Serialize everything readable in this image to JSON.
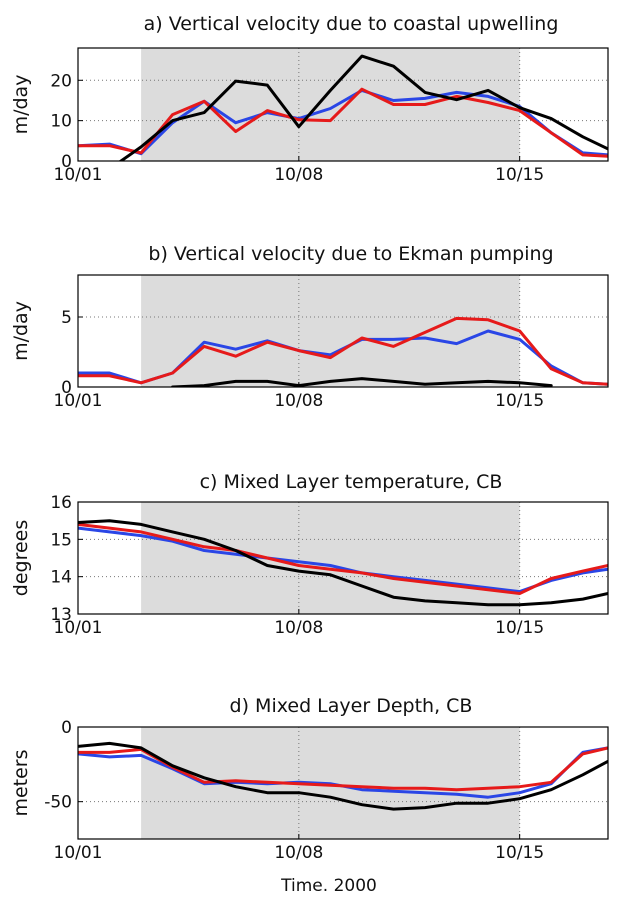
{
  "figure": {
    "xlabel": "Time. 2000"
  },
  "chart_data": [
    {
      "type": "line",
      "title": "a) Vertical velocity due to coastal upwelling",
      "ylabel": "m/day",
      "xlim": [
        1,
        17.8
      ],
      "ylim": [
        0,
        28
      ],
      "yticks": [
        0,
        10,
        20
      ],
      "xticks": [
        1,
        8,
        15
      ],
      "xticklabels": [
        "10/01",
        "10/08",
        "10/15"
      ],
      "shade": [
        3,
        15
      ],
      "grid": "dotted",
      "x": [
        1,
        2,
        3,
        4,
        5,
        6,
        7,
        8,
        9,
        10,
        11,
        12,
        13,
        14,
        15,
        16,
        17,
        17.8
      ],
      "series": [
        {
          "color": "#2a46e6",
          "values": [
            3.8,
            4.2,
            1.8,
            9.5,
            14.8,
            9.5,
            12.0,
            10.5,
            13.0,
            17.5,
            15.0,
            15.5,
            17.0,
            16.0,
            13.5,
            7.0,
            2.0,
            1.5
          ]
        },
        {
          "color": "#e61a1a",
          "values": [
            3.8,
            3.8,
            2.0,
            11.5,
            14.8,
            7.3,
            12.5,
            10.2,
            10.0,
            17.8,
            14.0,
            14.0,
            16.0,
            14.5,
            12.5,
            7.0,
            1.5,
            1.2
          ]
        },
        {
          "color": "#000000",
          "values": [
            -5.0,
            -2.0,
            3.5,
            10.0,
            12.0,
            19.8,
            18.8,
            8.5,
            17.5,
            26.0,
            23.5,
            17.0,
            15.2,
            17.5,
            13.2,
            10.5,
            6.0,
            3.0
          ]
        }
      ]
    },
    {
      "type": "line",
      "title": "b) Vertical velocity due to Ekman pumping",
      "ylabel": "m/day",
      "xlim": [
        1,
        17.8
      ],
      "ylim": [
        0,
        8
      ],
      "yticks": [
        0,
        5
      ],
      "xticks": [
        1,
        8,
        15
      ],
      "xticklabels": [
        "10/01",
        "10/08",
        "10/15"
      ],
      "shade": [
        3,
        15
      ],
      "grid": "dotted",
      "x": [
        1,
        2,
        3,
        4,
        5,
        6,
        7,
        8,
        9,
        10,
        11,
        12,
        13,
        14,
        15,
        16,
        17,
        17.8
      ],
      "series": [
        {
          "color": "#2a46e6",
          "values": [
            1.0,
            1.0,
            0.3,
            1.0,
            3.2,
            2.7,
            3.3,
            2.6,
            2.3,
            3.4,
            3.4,
            3.5,
            3.1,
            4.0,
            3.4,
            1.5,
            0.3,
            0.2
          ]
        },
        {
          "color": "#e61a1a",
          "values": [
            0.8,
            0.8,
            0.3,
            1.0,
            2.9,
            2.2,
            3.2,
            2.6,
            2.1,
            3.5,
            2.9,
            3.9,
            4.9,
            4.8,
            4.0,
            1.3,
            0.3,
            0.2
          ]
        },
        {
          "color": "#000000",
          "values": [
            null,
            null,
            null,
            0.0,
            0.1,
            0.4,
            0.4,
            0.1,
            0.4,
            0.6,
            0.4,
            0.2,
            0.3,
            0.4,
            0.3,
            0.1,
            null,
            null
          ]
        }
      ]
    },
    {
      "type": "line",
      "title": "c) Mixed Layer temperature, CB",
      "ylabel": "degrees",
      "xlim": [
        1,
        17.8
      ],
      "ylim": [
        13,
        16
      ],
      "yticks": [
        13,
        14,
        15,
        16
      ],
      "xticks": [
        1,
        8,
        15
      ],
      "xticklabels": [
        "10/01",
        "10/08",
        "10/15"
      ],
      "shade": [
        3,
        15
      ],
      "grid": "dotted",
      "x": [
        1,
        2,
        3,
        4,
        5,
        6,
        7,
        8,
        9,
        10,
        11,
        12,
        13,
        14,
        15,
        16,
        17,
        17.8
      ],
      "series": [
        {
          "color": "#2a46e6",
          "values": [
            15.3,
            15.2,
            15.1,
            14.95,
            14.7,
            14.6,
            14.5,
            14.4,
            14.3,
            14.1,
            14.0,
            13.9,
            13.8,
            13.7,
            13.6,
            13.9,
            14.1,
            14.2
          ]
        },
        {
          "color": "#e61a1a",
          "values": [
            15.4,
            15.3,
            15.2,
            15.0,
            14.8,
            14.7,
            14.5,
            14.3,
            14.2,
            14.1,
            13.95,
            13.85,
            13.75,
            13.65,
            13.55,
            13.95,
            14.15,
            14.3
          ]
        },
        {
          "color": "#000000",
          "values": [
            15.45,
            15.5,
            15.4,
            15.2,
            15.0,
            14.7,
            14.3,
            14.15,
            14.05,
            13.75,
            13.45,
            13.35,
            13.3,
            13.25,
            13.25,
            13.3,
            13.4,
            13.55
          ]
        }
      ]
    },
    {
      "type": "line",
      "title": "d) Mixed Layer Depth, CB",
      "ylabel": "meters",
      "xlim": [
        1,
        17.8
      ],
      "ylim": [
        -75,
        0
      ],
      "yticks": [
        -50,
        0
      ],
      "xticks": [
        1,
        8,
        15
      ],
      "xticklabels": [
        "10/01",
        "10/08",
        "10/15"
      ],
      "shade": [
        3,
        15
      ],
      "grid": "dotted",
      "x": [
        1,
        2,
        3,
        4,
        5,
        6,
        7,
        8,
        9,
        10,
        11,
        12,
        13,
        14,
        15,
        16,
        17,
        17.8
      ],
      "series": [
        {
          "color": "#2a46e6",
          "values": [
            -18,
            -20,
            -19,
            -28,
            -38,
            -37,
            -38,
            -37,
            -38,
            -42,
            -43,
            -44,
            -45,
            -47,
            -44,
            -38,
            -17,
            -14
          ]
        },
        {
          "color": "#e61a1a",
          "values": [
            -17,
            -17,
            -15,
            -27,
            -37,
            -36,
            -37,
            -38,
            -39,
            -40,
            -41,
            -41,
            -42,
            -41,
            -40,
            -37,
            -18,
            -14
          ]
        },
        {
          "color": "#000000",
          "values": [
            -13,
            -11,
            -14,
            -26,
            -34,
            -40,
            -44,
            -44,
            -47,
            -52,
            -55,
            -54,
            -51,
            -51,
            -48,
            -42,
            -32,
            -23
          ]
        }
      ]
    }
  ]
}
